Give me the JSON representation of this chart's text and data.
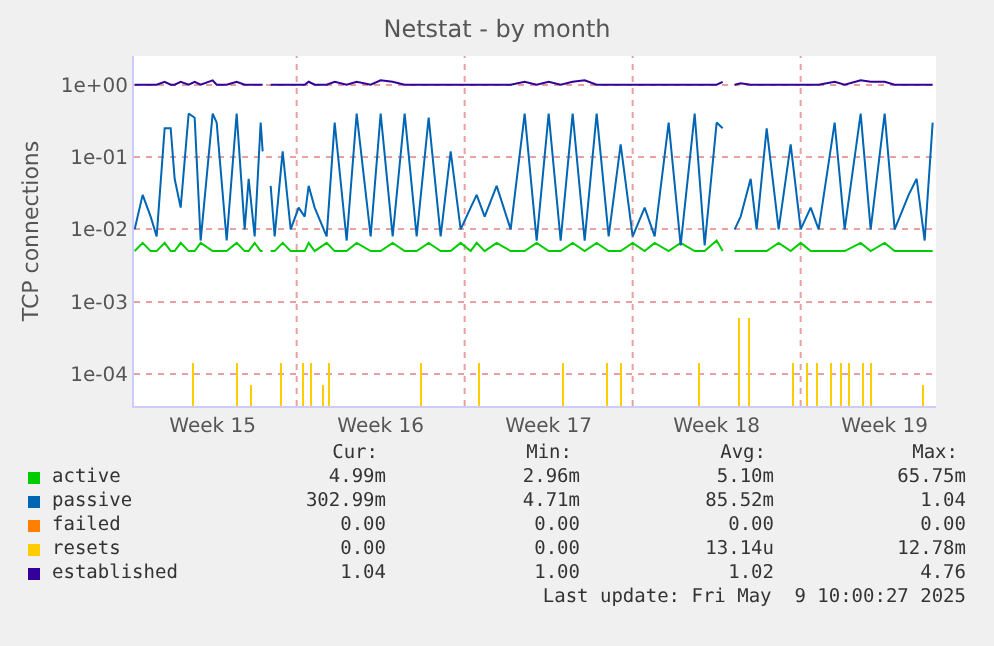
{
  "chart_data": {
    "type": "line",
    "title": "Netstat - by month",
    "ylabel": "TCP connections",
    "log": "y",
    "grid": true,
    "legend": "bottom",
    "marker": "none",
    "line_style": "solid",
    "xlim": [
      "2025-04-06T05:20",
      "2025-05-09T15:20"
    ],
    "xticks": [
      {
        "value": "2025-04-09T12:00",
        "label": "Week 15"
      },
      {
        "value": "2025-04-13T00:00",
        "label": null
      },
      {
        "value": "2025-04-16T12:00",
        "label": "Week 16"
      },
      {
        "value": "2025-04-20T00:00",
        "label": null
      },
      {
        "value": "2025-04-23T12:00",
        "label": "Week 17"
      },
      {
        "value": "2025-04-27T00:00",
        "label": null
      },
      {
        "value": "2025-04-30T12:00",
        "label": "Week 18"
      },
      {
        "value": "2025-05-04T00:00",
        "label": null
      },
      {
        "value": "2025-05-07T12:00",
        "label": "Week 19"
      }
    ],
    "ylim": [
      3.6e-05,
      2.5
    ],
    "yticks": [
      {
        "value": 0.0001,
        "label": "1e-04"
      },
      {
        "value": 0.001,
        "label": "1e-03"
      },
      {
        "value": 0.01,
        "label": "1e-02"
      },
      {
        "value": 0.1,
        "label": "1e-01"
      },
      {
        "value": 1,
        "label": "1e+00"
      }
    ],
    "x": [
      "2025-04-06T06:00",
      "2025-04-06T14:00",
      "2025-04-06T22:00",
      "2025-04-07T04:00",
      "2025-04-07T12:00",
      "2025-04-07T18:00",
      "2025-04-07T22:00",
      "2025-04-08T04:00",
      "2025-04-08T12:00",
      "2025-04-08T18:00",
      "2025-04-09T00:00",
      "2025-04-09T12:00",
      "2025-04-09T16:00",
      "2025-04-10T02:00",
      "2025-04-10T12:00",
      "2025-04-10T20:00",
      "2025-04-11T00:00",
      "2025-04-11T06:00",
      "2025-04-11T12:00",
      "2025-04-11T14:00",
      "2025-04-11T16:00",
      "2025-04-11T22:00",
      "2025-04-12T02:00",
      "2025-04-12T10:00",
      "2025-04-12T18:00",
      "2025-04-13T02:00",
      "2025-04-13T08:00",
      "2025-04-13T12:00",
      "2025-04-13T18:00",
      "2025-04-14T06:00",
      "2025-04-14T14:00",
      "2025-04-15T02:00",
      "2025-04-15T12:00",
      "2025-04-16T02:00",
      "2025-04-16T12:00",
      "2025-04-17T00:00",
      "2025-04-17T12:00",
      "2025-04-18T00:00",
      "2025-04-18T12:00",
      "2025-04-19T00:00",
      "2025-04-19T10:00",
      "2025-04-19T20:00",
      "2025-04-20T06:00",
      "2025-04-20T12:00",
      "2025-04-20T20:00",
      "2025-04-21T08:00",
      "2025-04-21T22:00",
      "2025-04-22T12:00",
      "2025-04-23T00:00",
      "2025-04-23T12:00",
      "2025-04-24T00:00",
      "2025-04-24T12:00",
      "2025-04-25T00:00",
      "2025-04-25T12:00",
      "2025-04-26T00:00",
      "2025-04-26T12:00",
      "2025-04-27T00:00",
      "2025-04-27T12:00",
      "2025-04-27T22:00",
      "2025-04-28T12:00",
      "2025-04-29T00:00",
      "2025-04-29T14:00",
      "2025-04-30T00:00",
      "2025-04-30T12:00",
      "2025-04-30T18:00",
      "2025-05-01T00:00",
      "2025-05-01T06:00",
      "2025-05-01T12:00",
      "2025-05-01T22:00",
      "2025-05-02T04:00",
      "2025-05-02T14:00",
      "2025-05-03T02:00",
      "2025-05-03T14:00",
      "2025-05-04T00:00",
      "2025-05-04T10:00",
      "2025-05-04T18:00",
      "2025-05-05T10:00",
      "2025-05-05T20:00",
      "2025-05-06T12:00",
      "2025-05-06T22:00",
      "2025-05-07T12:00",
      "2025-05-07T22:00",
      "2025-05-08T12:00",
      "2025-05-08T20:00",
      "2025-05-09T04:00",
      "2025-05-09T12:00"
    ],
    "series": [
      {
        "name": "active",
        "color": "#00cc00",
        "values": [
          0.005,
          0.0065,
          0.005,
          0.005,
          0.0065,
          0.005,
          0.005,
          0.0065,
          0.005,
          0.005,
          0.0065,
          0.005,
          0.005,
          0.005,
          0.0065,
          0.005,
          0.005,
          0.0065,
          0.005,
          0.005,
          null,
          0.005,
          0.005,
          0.0065,
          0.005,
          0.005,
          0.005,
          0.0065,
          0.005,
          0.0065,
          0.005,
          0.005,
          0.0065,
          0.005,
          0.005,
          0.0065,
          0.005,
          0.005,
          0.0065,
          0.005,
          0.005,
          0.0065,
          0.005,
          0.0065,
          0.005,
          0.0065,
          0.005,
          0.005,
          0.0065,
          0.005,
          0.005,
          0.0065,
          0.005,
          0.0065,
          0.005,
          0.005,
          0.0065,
          0.005,
          0.0065,
          0.005,
          0.0065,
          0.005,
          0.005,
          0.007,
          0.005,
          null,
          0.005,
          0.005,
          0.005,
          0.005,
          0.005,
          0.0065,
          0.005,
          0.0065,
          0.005,
          0.005,
          0.005,
          0.005,
          0.0065,
          0.005,
          0.0065,
          0.005,
          0.005,
          0.005,
          0.005,
          0.005
        ]
      },
      {
        "name": "passive",
        "color": "#0066b3",
        "values": [
          0.01,
          0.03,
          0.015,
          0.008,
          0.25,
          0.25,
          0.05,
          0.02,
          0.4,
          0.35,
          0.007,
          0.4,
          0.3,
          0.007,
          0.4,
          0.01,
          0.05,
          0.008,
          0.3,
          0.12,
          null,
          0.04,
          0.008,
          0.12,
          0.01,
          0.02,
          0.015,
          0.04,
          0.02,
          0.008,
          0.3,
          0.007,
          0.4,
          0.008,
          0.4,
          0.008,
          0.4,
          0.008,
          0.35,
          0.008,
          0.12,
          0.01,
          0.02,
          0.03,
          0.015,
          0.04,
          0.01,
          0.4,
          0.007,
          0.4,
          0.007,
          0.4,
          0.007,
          0.4,
          0.008,
          0.15,
          0.008,
          0.02,
          0.008,
          0.3,
          0.006,
          0.4,
          0.006,
          0.3,
          0.25,
          null,
          0.01,
          0.015,
          0.05,
          0.01,
          0.25,
          0.01,
          0.15,
          0.01,
          0.02,
          0.01,
          0.3,
          0.01,
          0.4,
          0.01,
          0.4,
          0.01,
          0.03,
          0.05,
          0.007,
          0.3
        ]
      },
      {
        "name": "failed",
        "color": "#ff8000",
        "values": [
          null,
          null,
          null,
          null,
          null,
          null,
          null,
          null,
          null,
          null,
          null,
          null,
          null,
          null,
          null,
          null,
          null,
          null,
          null,
          null,
          null,
          null,
          null,
          null,
          null,
          null,
          null,
          null,
          null,
          null,
          null,
          null,
          null,
          null,
          null,
          null,
          null,
          null,
          null,
          null,
          null,
          null,
          null,
          null,
          null,
          null,
          null,
          null,
          null,
          null,
          null,
          null,
          null,
          null,
          null,
          null,
          null,
          null,
          null,
          null,
          null,
          null,
          null,
          null,
          null,
          null,
          null,
          null,
          null,
          null,
          null,
          null,
          null,
          null,
          null,
          null,
          null,
          null,
          null,
          null,
          null,
          null,
          null,
          null,
          null,
          null
        ]
      },
      {
        "name": "resets",
        "color": "#ffcc00",
        "type": "bar",
        "x": [
          "2025-04-08T16:00",
          "2025-04-10T12:00",
          "2025-04-11T02:00",
          "2025-04-12T08:00",
          "2025-04-13T06:00",
          "2025-04-13T14:00",
          "2025-04-14T02:00",
          "2025-04-14T08:00",
          "2025-04-18T04:00",
          "2025-04-20T14:00",
          "2025-04-24T02:00",
          "2025-04-25T22:00",
          "2025-04-26T12:00",
          "2025-04-29T18:00",
          "2025-05-01T10:00",
          "2025-05-01T20:00",
          "2025-05-03T16:00",
          "2025-05-04T06:00",
          "2025-05-04T16:00",
          "2025-05-05T06:00",
          "2025-05-05T16:00",
          "2025-05-06T00:00",
          "2025-05-06T14:00",
          "2025-05-06T22:00",
          "2025-05-09T02:00"
        ],
        "values": [
          0.00014,
          0.00014,
          7e-05,
          0.00014,
          0.00014,
          0.00014,
          7e-05,
          0.00014,
          0.00014,
          0.00014,
          0.00014,
          0.00014,
          0.00014,
          0.00014,
          0.0006,
          0.0006,
          0.00014,
          0.00014,
          0.00014,
          0.00014,
          0.00014,
          0.00014,
          0.00014,
          0.00014,
          7e-05
        ]
      },
      {
        "name": "established",
        "color": "#330099",
        "values": [
          1,
          1,
          1,
          1,
          1.1,
          1,
          1,
          1.1,
          1,
          1.1,
          1,
          1.15,
          1,
          1,
          1.1,
          1,
          1,
          1,
          1,
          1,
          null,
          1,
          1,
          1,
          1,
          1,
          1,
          1.1,
          1,
          1,
          1.1,
          1,
          1.1,
          1,
          1.15,
          1.1,
          1,
          1,
          1,
          1,
          1,
          1,
          1,
          1,
          1,
          1,
          1,
          1.1,
          1,
          1.1,
          1,
          1.1,
          1.15,
          1,
          1,
          1,
          1,
          1,
          1,
          1,
          1,
          1,
          1,
          1,
          1.1,
          null,
          1,
          1.05,
          1,
          1,
          1,
          1,
          1,
          1,
          1,
          1,
          1.1,
          1,
          1.15,
          1.1,
          1.1,
          1,
          1,
          1,
          1,
          1
        ]
      }
    ],
    "annotations": [
      "Cur:",
      "Min:",
      "Avg:",
      "Max:",
      "4.99m",
      "2.96m",
      "5.10m",
      "65.75m",
      "302.99m",
      "4.71m",
      "85.52m",
      "1.04",
      "0.00",
      "0.00",
      "0.00",
      "0.00",
      "0.00",
      "0.00",
      "13.14u",
      "12.78m",
      "1.04",
      "1.00",
      "1.02",
      "4.76",
      "Last update: Fri May  9 10:00:27 2025"
    ]
  }
}
